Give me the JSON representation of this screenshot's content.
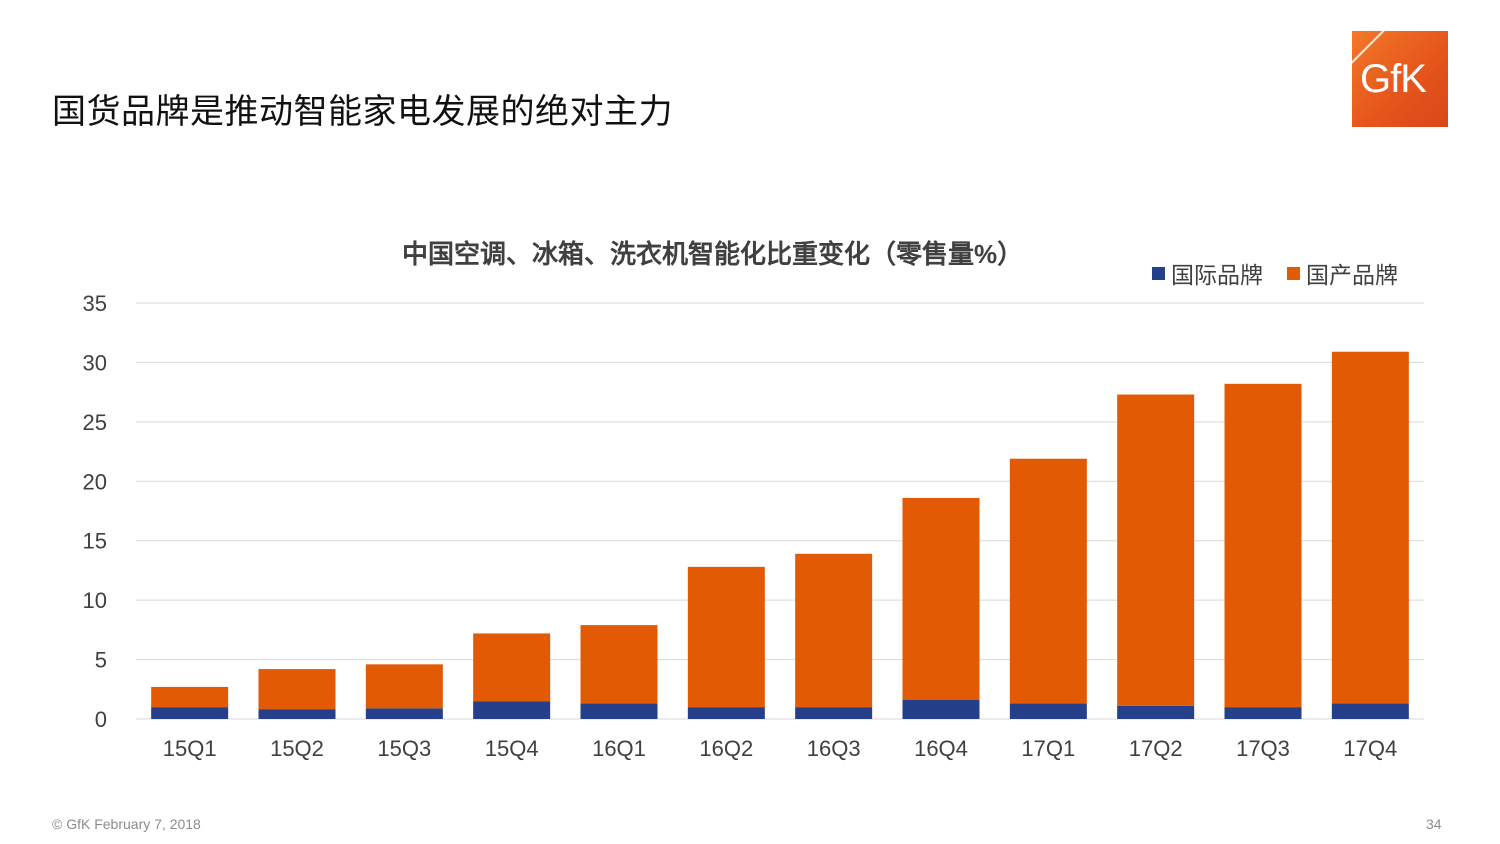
{
  "slide": {
    "title": "国货品牌是推动智能家电发展的绝对主力",
    "logo_text": "GfK",
    "footer_left": "© GfK February 7, 2018",
    "page_number": "34"
  },
  "colors": {
    "international": "#263f8a",
    "domestic": "#e35a04",
    "grid": "#d9d9d9",
    "axis_text": "#404040"
  },
  "chart_data": {
    "type": "bar",
    "stacked": true,
    "title": "中国空调、冰箱、洗衣机智能化比重变化（零售量%）",
    "categories": [
      "15Q1",
      "15Q2",
      "15Q3",
      "15Q4",
      "16Q1",
      "16Q2",
      "16Q3",
      "16Q4",
      "17Q1",
      "17Q2",
      "17Q3",
      "17Q4"
    ],
    "series": [
      {
        "name": "国际品牌",
        "values": [
          1.0,
          0.8,
          0.9,
          1.5,
          1.3,
          1.0,
          1.0,
          1.6,
          1.3,
          1.1,
          1.0,
          1.3
        ]
      },
      {
        "name": "国产品牌",
        "values": [
          1.7,
          3.4,
          3.7,
          5.7,
          6.6,
          11.8,
          12.9,
          17.0,
          20.6,
          26.2,
          27.2,
          29.6
        ]
      }
    ],
    "ylim": [
      0,
      35
    ],
    "yticks": [
      "0",
      "5",
      "10",
      "15",
      "20",
      "25",
      "30",
      "35"
    ],
    "xlabel": "",
    "ylabel": "",
    "grid": true,
    "legend_position": "top-right"
  }
}
